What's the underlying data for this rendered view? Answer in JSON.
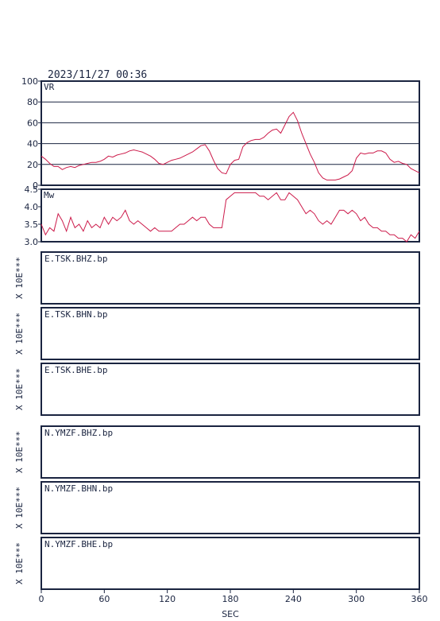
{
  "header": {
    "datetime": "2023/11/27 00:36"
  },
  "colors": {
    "frame": "#1a2440",
    "series": "#cc1a4a",
    "grid": "#1a2440"
  },
  "chart_data": [
    {
      "type": "line",
      "panel_label": "VR",
      "ylim": [
        0,
        100
      ],
      "yticks": [
        "0",
        "20",
        "40",
        "60",
        "80",
        "100"
      ],
      "grid": true,
      "xlim": [
        0,
        360
      ],
      "series": [
        {
          "x": [
            0,
            4,
            8,
            12,
            16,
            20,
            24,
            28,
            32,
            36,
            40,
            44,
            48,
            52,
            56,
            60,
            64,
            68,
            72,
            76,
            80,
            84,
            88,
            92,
            96,
            100,
            104,
            108,
            112,
            116,
            120,
            124,
            128,
            132,
            136,
            140,
            144,
            148,
            152,
            156,
            160,
            164,
            168,
            172,
            176,
            180,
            184,
            188,
            192,
            196,
            200,
            204,
            208,
            212,
            216,
            220,
            224,
            228,
            232,
            236,
            240,
            244,
            248,
            252,
            256,
            260,
            264,
            268,
            272,
            276,
            280,
            284,
            288,
            292,
            296,
            300,
            304,
            308,
            312,
            316,
            320,
            324,
            328,
            332,
            336,
            340,
            344,
            348,
            352,
            356,
            360
          ],
          "y": [
            28,
            25,
            21,
            18,
            18,
            15,
            17,
            18,
            17,
            19,
            20,
            21,
            22,
            22,
            23,
            25,
            28,
            27,
            29,
            30,
            31,
            33,
            34,
            33,
            32,
            30,
            28,
            25,
            21,
            20,
            22,
            24,
            25,
            26,
            28,
            30,
            32,
            35,
            38,
            39,
            33,
            24,
            16,
            12,
            11,
            20,
            24,
            25,
            37,
            41,
            43,
            44,
            44,
            46,
            50,
            53,
            54,
            50,
            58,
            66,
            70,
            62,
            50,
            40,
            30,
            22,
            12,
            7,
            5,
            5,
            5,
            6,
            8,
            10,
            14,
            26,
            31,
            30,
            31,
            31,
            33,
            33,
            31,
            25,
            22,
            23,
            21,
            20,
            16,
            14,
            12
          ]
        }
      ]
    },
    {
      "type": "line",
      "panel_label": "Mw",
      "ylim": [
        3.0,
        4.5
      ],
      "yticks": [
        "3.0",
        "3.5",
        "4.0",
        "4.5"
      ],
      "grid": false,
      "xlim": [
        0,
        360
      ],
      "series": [
        {
          "x": [
            0,
            4,
            8,
            12,
            16,
            20,
            24,
            28,
            32,
            36,
            40,
            44,
            48,
            52,
            56,
            60,
            64,
            68,
            72,
            76,
            80,
            84,
            88,
            92,
            96,
            100,
            104,
            108,
            112,
            116,
            120,
            124,
            128,
            132,
            136,
            140,
            144,
            148,
            152,
            156,
            160,
            164,
            168,
            172,
            176,
            180,
            184,
            188,
            192,
            196,
            200,
            204,
            208,
            212,
            216,
            220,
            224,
            228,
            232,
            236,
            240,
            244,
            248,
            252,
            256,
            260,
            264,
            268,
            272,
            276,
            280,
            284,
            288,
            292,
            296,
            300,
            304,
            308,
            312,
            316,
            320,
            324,
            328,
            332,
            336,
            340,
            344,
            348,
            352,
            356,
            360
          ],
          "y": [
            3.5,
            3.2,
            3.4,
            3.3,
            3.8,
            3.6,
            3.3,
            3.7,
            3.4,
            3.5,
            3.3,
            3.6,
            3.4,
            3.5,
            3.4,
            3.7,
            3.5,
            3.7,
            3.6,
            3.7,
            3.9,
            3.6,
            3.5,
            3.6,
            3.5,
            3.4,
            3.3,
            3.4,
            3.3,
            3.3,
            3.3,
            3.3,
            3.4,
            3.5,
            3.5,
            3.6,
            3.7,
            3.6,
            3.7,
            3.7,
            3.5,
            3.4,
            3.4,
            3.4,
            4.2,
            4.3,
            4.4,
            4.4,
            4.4,
            4.4,
            4.4,
            4.4,
            4.3,
            4.3,
            4.2,
            4.3,
            4.4,
            4.2,
            4.2,
            4.4,
            4.3,
            4.2,
            4.0,
            3.8,
            3.9,
            3.8,
            3.6,
            3.5,
            3.6,
            3.5,
            3.7,
            3.9,
            3.9,
            3.8,
            3.9,
            3.8,
            3.6,
            3.7,
            3.5,
            3.4,
            3.4,
            3.3,
            3.3,
            3.2,
            3.2,
            3.1,
            3.1,
            3.0,
            3.2,
            3.1,
            3.3
          ]
        }
      ]
    }
  ],
  "x_axis": {
    "label": "SEC",
    "ticks": [
      "0",
      "60",
      "120",
      "180",
      "240",
      "300",
      "360"
    ]
  },
  "stations": [
    {
      "label": "E.TSK.BHZ.bp",
      "ylabel": "X 10E***"
    },
    {
      "label": "E.TSK.BHN.bp",
      "ylabel": "X 10E***"
    },
    {
      "label": "E.TSK.BHE.bp",
      "ylabel": "X 10E***"
    },
    {
      "label": "N.YMZF.BHZ.bp",
      "ylabel": "X 10E***"
    },
    {
      "label": "N.YMZF.BHN.bp",
      "ylabel": "X 10E***"
    },
    {
      "label": "N.YMZF.BHE.bp",
      "ylabel": "X 10E***"
    }
  ]
}
